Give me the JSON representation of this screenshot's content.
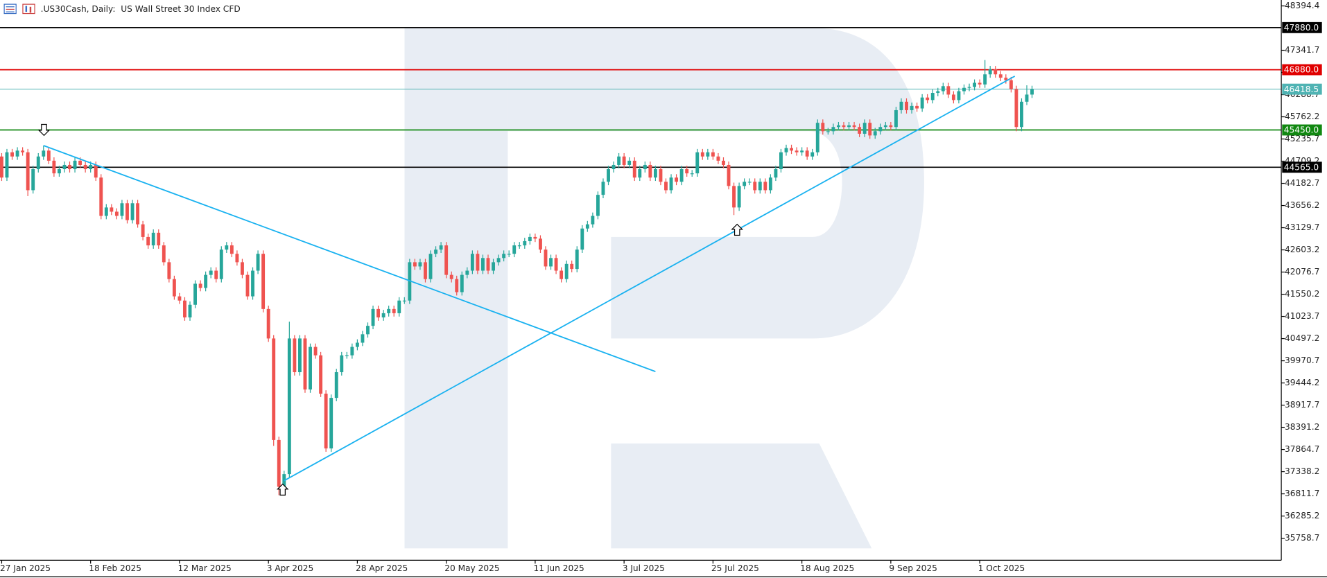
{
  "chart_data": {
    "type": "candlestick",
    "title": ".US30Cash, Daily:  US Wall Street 30 Index CFD",
    "up_color": "#26a69a",
    "down_color": "#ef5350",
    "ylim": [
      35236,
      48535
    ],
    "yticks": [
      48394.4,
      47341.7,
      46815.2,
      46288.7,
      45762.2,
      45235.7,
      44709.2,
      44182.7,
      43656.2,
      43129.7,
      42603.2,
      42076.7,
      41550.2,
      41023.7,
      40497.2,
      39970.7,
      39444.2,
      38917.7,
      38391.2,
      37864.7,
      37338.2,
      36811.7,
      36285.2,
      35758.7
    ],
    "grid": false,
    "levels": [
      {
        "value": 47880,
        "label": "47880.0",
        "color": "#000000"
      },
      {
        "value": 46880,
        "label": "46880.0",
        "color": "#e00000"
      },
      {
        "value": 46418.5,
        "label": "46418.5",
        "color": "#4fb3b3"
      },
      {
        "value": 45450,
        "label": "45450.0",
        "color": "#118811"
      },
      {
        "value": 44565,
        "label": "44565.0",
        "color": "#000000"
      }
    ],
    "trendlines": [
      {
        "start": [
          8,
          45080
        ],
        "end": [
          125,
          39715
        ],
        "color": "#1ab2f0"
      },
      {
        "start": [
          54,
          37124
        ],
        "end": [
          193.7,
          46727
        ],
        "color": "#1ab2f0"
      }
    ],
    "categories": [
      "27 Jan 2025",
      null,
      null,
      null,
      null,
      null,
      null,
      null,
      null,
      null,
      null,
      null,
      null,
      null,
      null,
      null,
      null,
      "18 Feb 2025",
      null,
      null,
      null,
      null,
      null,
      null,
      null,
      null,
      null,
      null,
      null,
      null,
      null,
      null,
      null,
      null,
      "12 Mar 2025",
      null,
      null,
      null,
      null,
      null,
      null,
      null,
      null,
      null,
      null,
      null,
      null,
      null,
      null,
      null,
      null,
      "3 Apr 2025",
      null,
      null,
      null,
      null,
      null,
      null,
      null,
      null,
      null,
      null,
      null,
      null,
      null,
      null,
      null,
      null,
      "28 Apr 2025",
      null,
      null,
      null,
      null,
      null,
      null,
      null,
      null,
      null,
      null,
      null,
      null,
      null,
      null,
      null,
      null,
      "20 May 2025",
      null,
      null,
      null,
      null,
      null,
      null,
      null,
      null,
      null,
      null,
      null,
      null,
      null,
      null,
      null,
      null,
      "11 Jun 2025",
      null,
      null,
      null,
      null,
      null,
      null,
      null,
      null,
      null,
      null,
      null,
      null,
      null,
      null,
      null,
      null,
      "3 Jul 2025",
      null,
      null,
      null,
      null,
      null,
      null,
      null,
      null,
      null,
      null,
      null,
      null,
      null,
      null,
      null,
      null,
      "25 Jul 2025",
      null,
      null,
      null,
      null,
      null,
      null,
      null,
      null,
      null,
      null,
      null,
      null,
      null,
      null,
      null,
      null,
      "18 Aug 2025",
      null,
      null,
      null,
      null,
      null,
      null,
      null,
      null,
      null,
      null,
      null,
      null,
      null,
      null,
      null,
      null,
      "9 Sep 2025",
      null,
      null,
      null,
      null,
      null,
      null,
      null,
      null,
      null,
      null,
      null,
      null,
      null,
      null,
      null,
      null,
      "1 Oct 2025",
      null,
      null,
      null,
      null,
      null,
      null,
      null,
      null,
      null,
      null
    ],
    "ohlc": [
      [
        44820,
        44900,
        44240,
        44320
      ],
      [
        44320,
        45000,
        44240,
        44920
      ],
      [
        44920,
        45000,
        44740,
        44820
      ],
      [
        44820,
        45040,
        44740,
        44960
      ],
      [
        44960,
        45040,
        44840,
        44920
      ],
      [
        44920,
        45000,
        43880,
        44020
      ],
      [
        44020,
        44600,
        43940,
        44520
      ],
      [
        44520,
        44900,
        44440,
        44820
      ],
      [
        44820,
        45080,
        44740,
        44960
      ],
      [
        44960,
        45040,
        44640,
        44720
      ],
      [
        44720,
        44800,
        44340,
        44420
      ],
      [
        44420,
        44600,
        44340,
        44520
      ],
      [
        44520,
        44700,
        44440,
        44620
      ],
      [
        44620,
        44700,
        44440,
        44520
      ],
      [
        44520,
        44800,
        44440,
        44720
      ],
      [
        44720,
        44800,
        44540,
        44620
      ],
      [
        44620,
        44700,
        44440,
        44520
      ],
      [
        44520,
        44700,
        44440,
        44620
      ],
      [
        44620,
        44700,
        44240,
        44320
      ],
      [
        44320,
        44400,
        43330,
        43410
      ],
      [
        43410,
        43690,
        43330,
        43610
      ],
      [
        43610,
        43690,
        43430,
        43510
      ],
      [
        43510,
        43590,
        43330,
        43410
      ],
      [
        43410,
        43790,
        43330,
        43710
      ],
      [
        43710,
        43790,
        43230,
        43310
      ],
      [
        43310,
        43790,
        43230,
        43710
      ],
      [
        43710,
        43790,
        43130,
        43210
      ],
      [
        43210,
        43290,
        42830,
        42910
      ],
      [
        42910,
        42990,
        42630,
        42710
      ],
      [
        42710,
        43090,
        42630,
        43010
      ],
      [
        43010,
        43090,
        42630,
        42710
      ],
      [
        42710,
        42790,
        42230,
        42310
      ],
      [
        42310,
        42390,
        41830,
        41910
      ],
      [
        41910,
        41990,
        41420,
        41500
      ],
      [
        41500,
        41580,
        41320,
        41400
      ],
      [
        41400,
        41480,
        40920,
        41000
      ],
      [
        41000,
        41380,
        40920,
        41300
      ],
      [
        41300,
        41880,
        41220,
        41800
      ],
      [
        41800,
        41880,
        41620,
        41700
      ],
      [
        41700,
        42090,
        41620,
        42010
      ],
      [
        42010,
        42190,
        41930,
        42110
      ],
      [
        42110,
        42190,
        41830,
        41910
      ],
      [
        41910,
        42690,
        41830,
        42610
      ],
      [
        42610,
        42790,
        42530,
        42710
      ],
      [
        42710,
        42790,
        42430,
        42510
      ],
      [
        42510,
        42590,
        42230,
        42310
      ],
      [
        42310,
        42390,
        41930,
        42010
      ],
      [
        42010,
        42090,
        41420,
        41500
      ],
      [
        41500,
        42190,
        41420,
        42110
      ],
      [
        42110,
        42590,
        42030,
        42510
      ],
      [
        42510,
        42590,
        41120,
        41200
      ],
      [
        41200,
        41280,
        40420,
        40500
      ],
      [
        40500,
        40580,
        37950,
        38090
      ],
      [
        38090,
        38170,
        36780,
        36980
      ],
      [
        36980,
        37360,
        36800,
        37280
      ],
      [
        37280,
        40900,
        37200,
        40500
      ],
      [
        40500,
        40580,
        39620,
        39700
      ],
      [
        39700,
        40580,
        39620,
        40500
      ],
      [
        40500,
        40580,
        39210,
        39290
      ],
      [
        39290,
        40380,
        39210,
        40300
      ],
      [
        40300,
        40380,
        40020,
        40100
      ],
      [
        40100,
        40180,
        39110,
        39190
      ],
      [
        39190,
        39270,
        37810,
        37890
      ],
      [
        37890,
        39170,
        37810,
        39090
      ],
      [
        39090,
        39780,
        39010,
        39700
      ],
      [
        39700,
        40180,
        39620,
        40100
      ],
      [
        40100,
        40180,
        40020,
        40100
      ],
      [
        40100,
        40380,
        40020,
        40300
      ],
      [
        40300,
        40480,
        40220,
        40400
      ],
      [
        40400,
        40680,
        40320,
        40600
      ],
      [
        40600,
        40880,
        40520,
        40800
      ],
      [
        40800,
        41280,
        40720,
        41200
      ],
      [
        41200,
        41280,
        40920,
        41000
      ],
      [
        41000,
        41180,
        40920,
        41100
      ],
      [
        41100,
        41280,
        41020,
        41200
      ],
      [
        41200,
        41280,
        41020,
        41100
      ],
      [
        41100,
        41480,
        41020,
        41400
      ],
      [
        41400,
        41480,
        41320,
        41400
      ],
      [
        41400,
        42390,
        41320,
        42310
      ],
      [
        42310,
        42390,
        42130,
        42210
      ],
      [
        42210,
        42390,
        42130,
        42310
      ],
      [
        42310,
        42390,
        41830,
        41910
      ],
      [
        41910,
        42590,
        41830,
        42510
      ],
      [
        42510,
        42690,
        42430,
        42610
      ],
      [
        42610,
        42790,
        42530,
        42710
      ],
      [
        42710,
        42790,
        41930,
        42010
      ],
      [
        42010,
        42090,
        41830,
        41910
      ],
      [
        41910,
        41990,
        41520,
        41600
      ],
      [
        41600,
        42090,
        41520,
        42010
      ],
      [
        42010,
        42190,
        41930,
        42110
      ],
      [
        42110,
        42590,
        42030,
        42510
      ],
      [
        42510,
        42590,
        42030,
        42110
      ],
      [
        42110,
        42490,
        42030,
        42410
      ],
      [
        42410,
        42490,
        42030,
        42110
      ],
      [
        42110,
        42390,
        42030,
        42310
      ],
      [
        42310,
        42490,
        42230,
        42410
      ],
      [
        42410,
        42590,
        42330,
        42510
      ],
      [
        42510,
        42590,
        42430,
        42510
      ],
      [
        42510,
        42790,
        42430,
        42710
      ],
      [
        42710,
        42790,
        42630,
        42710
      ],
      [
        42710,
        42890,
        42630,
        42810
      ],
      [
        42810,
        42990,
        42730,
        42910
      ],
      [
        42910,
        42990,
        42790,
        42870
      ],
      [
        42870,
        42950,
        42530,
        42610
      ],
      [
        42610,
        42690,
        42130,
        42210
      ],
      [
        42210,
        42490,
        42130,
        42410
      ],
      [
        42410,
        42490,
        42030,
        42110
      ],
      [
        42110,
        42190,
        41830,
        41910
      ],
      [
        41910,
        42350,
        41830,
        42270
      ],
      [
        42270,
        42350,
        42070,
        42150
      ],
      [
        42150,
        42690,
        42070,
        42610
      ],
      [
        42610,
        43190,
        42530,
        43110
      ],
      [
        43110,
        43290,
        43030,
        43210
      ],
      [
        43210,
        43490,
        43130,
        43410
      ],
      [
        43410,
        43990,
        43330,
        43910
      ],
      [
        43910,
        44300,
        43830,
        44220
      ],
      [
        44220,
        44600,
        44140,
        44520
      ],
      [
        44520,
        44700,
        44440,
        44620
      ],
      [
        44620,
        44900,
        44540,
        44820
      ],
      [
        44820,
        44900,
        44540,
        44620
      ],
      [
        44620,
        44800,
        44540,
        44720
      ],
      [
        44720,
        44800,
        44240,
        44320
      ],
      [
        44320,
        44600,
        44240,
        44520
      ],
      [
        44520,
        44700,
        44440,
        44620
      ],
      [
        44620,
        44700,
        44240,
        44320
      ],
      [
        44320,
        44600,
        44240,
        44520
      ],
      [
        44520,
        44600,
        44140,
        44220
      ],
      [
        44220,
        44300,
        43940,
        44020
      ],
      [
        44020,
        44400,
        43940,
        44320
      ],
      [
        44320,
        44400,
        44140,
        44220
      ],
      [
        44220,
        44600,
        44140,
        44520
      ],
      [
        44520,
        44600,
        44340,
        44420
      ],
      [
        44420,
        44500,
        44340,
        44420
      ],
      [
        44420,
        45000,
        44340,
        44920
      ],
      [
        44920,
        45000,
        44740,
        44820
      ],
      [
        44820,
        45000,
        44740,
        44920
      ],
      [
        44920,
        45000,
        44740,
        44820
      ],
      [
        44820,
        44900,
        44640,
        44720
      ],
      [
        44720,
        44800,
        44540,
        44620
      ],
      [
        44620,
        44700,
        44040,
        44120
      ],
      [
        44120,
        44200,
        43430,
        43610
      ],
      [
        43610,
        44200,
        43530,
        44120
      ],
      [
        44120,
        44300,
        44040,
        44220
      ],
      [
        44220,
        44300,
        44140,
        44220
      ],
      [
        44220,
        44300,
        43940,
        44020
      ],
      [
        44020,
        44300,
        43940,
        44220
      ],
      [
        44220,
        44300,
        43940,
        44020
      ],
      [
        44020,
        44400,
        43940,
        44320
      ],
      [
        44320,
        44600,
        44240,
        44520
      ],
      [
        44520,
        45000,
        44440,
        44920
      ],
      [
        44920,
        45100,
        44840,
        45020
      ],
      [
        45020,
        45100,
        44880,
        44960
      ],
      [
        44960,
        45040,
        44840,
        44920
      ],
      [
        44920,
        45040,
        44840,
        44960
      ],
      [
        44960,
        45040,
        44740,
        44820
      ],
      [
        44820,
        45000,
        44740,
        44920
      ],
      [
        44920,
        45700,
        44840,
        45620
      ],
      [
        45620,
        45700,
        45340,
        45420
      ],
      [
        45420,
        45500,
        45340,
        45420
      ],
      [
        45420,
        45600,
        45340,
        45520
      ],
      [
        45520,
        45640,
        45440,
        45560
      ],
      [
        45560,
        45640,
        45440,
        45520
      ],
      [
        45520,
        45640,
        45440,
        45560
      ],
      [
        45560,
        45640,
        45440,
        45520
      ],
      [
        45520,
        45600,
        45280,
        45360
      ],
      [
        45360,
        45700,
        45280,
        45620
      ],
      [
        45620,
        45700,
        45240,
        45320
      ],
      [
        45320,
        45500,
        45240,
        45420
      ],
      [
        45420,
        45600,
        45340,
        45520
      ],
      [
        45520,
        45640,
        45440,
        45560
      ],
      [
        45560,
        45640,
        45440,
        45520
      ],
      [
        45520,
        46000,
        45440,
        45920
      ],
      [
        45920,
        46200,
        45840,
        46120
      ],
      [
        46120,
        46200,
        45840,
        45920
      ],
      [
        45920,
        46100,
        45840,
        46020
      ],
      [
        46020,
        46100,
        45880,
        45960
      ],
      [
        45960,
        46300,
        45880,
        46220
      ],
      [
        46220,
        46300,
        46080,
        46160
      ],
      [
        46160,
        46410,
        46080,
        46330
      ],
      [
        46330,
        46450,
        46250,
        46370
      ],
      [
        46370,
        46570,
        46290,
        46490
      ],
      [
        46490,
        46570,
        46210,
        46290
      ],
      [
        46290,
        46370,
        46080,
        46160
      ],
      [
        46160,
        46450,
        46080,
        46370
      ],
      [
        46370,
        46530,
        46290,
        46450
      ],
      [
        46450,
        46550,
        46370,
        46470
      ],
      [
        46470,
        46650,
        46390,
        46570
      ],
      [
        46570,
        46650,
        46450,
        46530
      ],
      [
        46530,
        47110,
        46450,
        46770
      ],
      [
        46770,
        46970,
        46690,
        46890
      ],
      [
        46890,
        46970,
        46690,
        46770
      ],
      [
        46770,
        46850,
        46610,
        46690
      ],
      [
        46690,
        46770,
        46550,
        46630
      ],
      [
        46630,
        46710,
        46340,
        46420
      ],
      [
        46420,
        46500,
        45420,
        45520
      ],
      [
        45520,
        46200,
        45420,
        46120
      ],
      [
        46120,
        46510,
        46040,
        46290
      ],
      [
        46290,
        46500,
        46210,
        46418.5
      ]
    ]
  }
}
